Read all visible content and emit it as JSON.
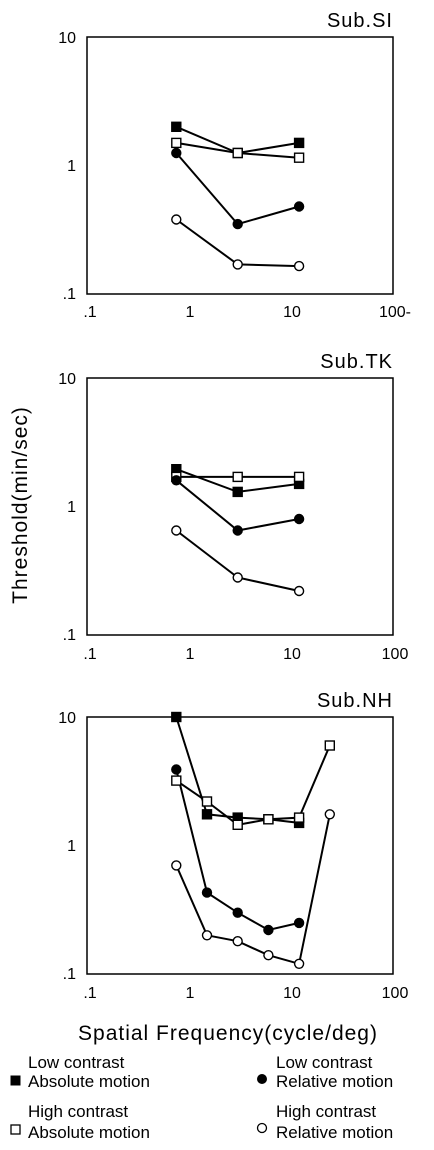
{
  "axes": {
    "xlabel": "Spatial Frequency(cycle/deg)",
    "ylabel": "Threshold(min/sec)",
    "x_tick_labels": [
      ".1",
      "1",
      "10",
      "100"
    ],
    "x_tick_labels_panel1": [
      ".1",
      "1",
      "10",
      "100-"
    ],
    "y_tick_labels": [
      "10",
      "1",
      ".1"
    ],
    "y_tick_labels_panel2": [
      "10",
      "1",
      ".1"
    ]
  },
  "legend": {
    "lc_abs": {
      "line1": "Low contrast",
      "line2": "Absolute motion"
    },
    "lc_rel": {
      "line1": "Low contrast",
      "line2": "Relative motion"
    },
    "hc_abs": {
      "line1": "High contrast",
      "line2": "Absolute motion"
    },
    "hc_rel": {
      "line1": "High contrast",
      "line2": "Relative motion"
    }
  },
  "styles": {
    "lc_abs": {
      "marker": "square",
      "fill": "#000000"
    },
    "hc_abs": {
      "marker": "square",
      "fill": "#ffffff"
    },
    "lc_rel": {
      "marker": "circle",
      "fill": "#000000"
    },
    "hc_rel": {
      "marker": "circle",
      "fill": "#ffffff"
    }
  },
  "chart_data": [
    {
      "type": "line",
      "title": "Sub.SI",
      "xscale": "log",
      "yscale": "log",
      "xlim": [
        0.1,
        100
      ],
      "ylim": [
        0.1,
        10
      ],
      "grid": false,
      "series": [
        {
          "key": "lc_abs",
          "x": [
            0.75,
            3,
            12
          ],
          "y": [
            2.0,
            1.25,
            1.5
          ]
        },
        {
          "key": "hc_abs",
          "x": [
            0.75,
            3,
            12
          ],
          "y": [
            1.5,
            1.25,
            1.15
          ]
        },
        {
          "key": "lc_rel",
          "x": [
            0.75,
            3,
            12
          ],
          "y": [
            1.25,
            0.35,
            0.48
          ]
        },
        {
          "key": "hc_rel",
          "x": [
            0.75,
            3,
            12
          ],
          "y": [
            0.38,
            0.17,
            0.165
          ]
        }
      ]
    },
    {
      "type": "line",
      "title": "Sub.TK",
      "xscale": "log",
      "yscale": "log",
      "xlim": [
        0.1,
        100
      ],
      "ylim": [
        0.1,
        10
      ],
      "grid": false,
      "series": [
        {
          "key": "lc_abs",
          "x": [
            0.75,
            3,
            12
          ],
          "y": [
            1.95,
            1.3,
            1.5
          ]
        },
        {
          "key": "hc_abs",
          "x": [
            0.75,
            3,
            12
          ],
          "y": [
            1.7,
            1.7,
            1.7
          ]
        },
        {
          "key": "lc_rel",
          "x": [
            0.75,
            3,
            12
          ],
          "y": [
            1.6,
            0.65,
            0.8
          ]
        },
        {
          "key": "hc_rel",
          "x": [
            0.75,
            3,
            12
          ],
          "y": [
            0.65,
            0.28,
            0.22
          ]
        }
      ]
    },
    {
      "type": "line",
      "title": "Sub.NH",
      "xscale": "log",
      "yscale": "log",
      "xlim": [
        0.1,
        100
      ],
      "ylim": [
        0.1,
        10
      ],
      "grid": false,
      "series": [
        {
          "key": "lc_abs",
          "x": [
            0.75,
            1.5,
            3,
            6,
            12
          ],
          "y": [
            10,
            1.75,
            1.65,
            1.6,
            1.5
          ]
        },
        {
          "key": "hc_abs",
          "x": [
            0.75,
            1.5,
            3,
            6,
            12,
            24
          ],
          "y": [
            3.2,
            2.2,
            1.45,
            1.6,
            1.65,
            6.0
          ]
        },
        {
          "key": "lc_rel",
          "x": [
            0.75,
            1.5,
            3,
            6,
            12
          ],
          "y": [
            3.9,
            0.43,
            0.3,
            0.22,
            0.25
          ]
        },
        {
          "key": "hc_rel",
          "x": [
            0.75,
            1.5,
            3,
            6,
            12,
            24
          ],
          "y": [
            0.7,
            0.2,
            0.18,
            0.14,
            0.12,
            1.75
          ]
        }
      ]
    }
  ]
}
